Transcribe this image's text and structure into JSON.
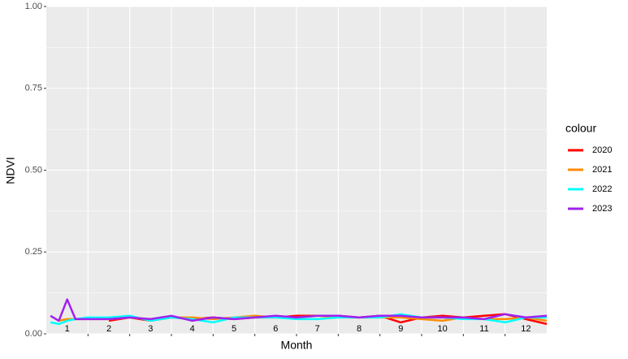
{
  "chart_data": {
    "type": "line",
    "x_label": "Month",
    "y_label": "NDVI",
    "x": [
      0.6,
      0.8,
      1.0,
      1.2,
      1.5,
      2.0,
      2.5,
      3.0,
      3.5,
      4.0,
      4.5,
      5.0,
      5.5,
      6.0,
      6.5,
      7.0,
      7.5,
      8.0,
      8.5,
      9.0,
      9.5,
      10.0,
      10.5,
      11.0,
      11.5,
      12.0,
      12.5
    ],
    "xlim": [
      0.5,
      12.5
    ],
    "xticks": [
      1,
      2,
      3,
      4,
      5,
      6,
      7,
      8,
      9,
      10,
      11,
      12
    ],
    "ylim": [
      0,
      1
    ],
    "yticks": [
      {
        "value": 0,
        "label": "0.00"
      },
      {
        "value": 0.25,
        "label": "0.25"
      },
      {
        "value": 0.5,
        "label": "0.50"
      },
      {
        "value": 0.75,
        "label": "0.75"
      },
      {
        "value": 1,
        "label": "1.00"
      }
    ],
    "grid": true,
    "legend_title": "colour",
    "legend_position": "right",
    "series": [
      {
        "name": "2020",
        "color": "#ff0000",
        "values": [
          null,
          null,
          null,
          null,
          null,
          0.04,
          0.05,
          0.04,
          0.05,
          0.045,
          0.05,
          0.045,
          0.05,
          0.05,
          0.055,
          0.055,
          0.055,
          0.05,
          0.055,
          0.035,
          0.05,
          0.055,
          0.05,
          0.055,
          0.06,
          0.045,
          0.03
        ]
      },
      {
        "name": "2021",
        "color": "#ff8c00",
        "values": [
          null,
          0.04,
          0.045,
          0.045,
          0.045,
          0.045,
          0.05,
          0.045,
          0.05,
          0.05,
          0.045,
          0.05,
          0.055,
          0.05,
          0.05,
          0.055,
          0.05,
          0.05,
          0.05,
          0.05,
          0.045,
          0.04,
          0.05,
          0.045,
          0.045,
          0.05,
          0.04
        ]
      },
      {
        "name": "2022",
        "color": "#00ffff",
        "values": [
          0.035,
          0.03,
          0.04,
          0.045,
          0.05,
          0.05,
          0.055,
          0.04,
          0.05,
          0.045,
          0.035,
          0.05,
          0.05,
          0.05,
          0.045,
          0.045,
          0.05,
          0.05,
          0.05,
          0.06,
          0.05,
          0.05,
          0.045,
          0.045,
          0.035,
          0.05,
          0.05
        ]
      },
      {
        "name": "2023",
        "color": "#a020f0",
        "values": [
          0.055,
          0.04,
          0.105,
          0.045,
          0.045,
          0.045,
          0.05,
          0.045,
          0.055,
          0.04,
          0.05,
          0.045,
          0.05,
          0.055,
          0.05,
          0.055,
          0.055,
          0.05,
          0.055,
          0.055,
          0.05,
          0.05,
          0.05,
          0.045,
          0.06,
          0.05,
          0.055
        ]
      }
    ]
  }
}
